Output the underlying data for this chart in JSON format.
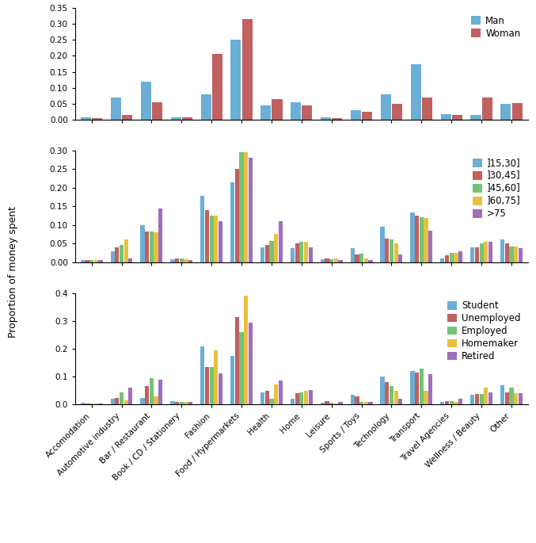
{
  "categories": [
    "Accomodation",
    "Automotive industry",
    "Bar / Restaurant",
    "Book / CD / Stationery",
    "Fashion",
    "Food / Hypermarkets",
    "Health",
    "Home",
    "Leisure",
    "Sports / Toys",
    "Technology",
    "Transport",
    "Travel Agencies",
    "Wellness / Beauty",
    "Other"
  ],
  "panel1": {
    "ylim": [
      0,
      0.35
    ],
    "yticks": [
      0.0,
      0.05,
      0.1,
      0.15,
      0.2,
      0.25,
      0.3,
      0.35
    ],
    "series": {
      "Man": [
        0.008,
        0.07,
        0.12,
        0.008,
        0.08,
        0.25,
        0.045,
        0.055,
        0.008,
        0.03,
        0.08,
        0.175,
        0.018,
        0.015,
        0.05
      ],
      "Woman": [
        0.004,
        0.015,
        0.055,
        0.008,
        0.205,
        0.315,
        0.065,
        0.045,
        0.004,
        0.025,
        0.05,
        0.068,
        0.015,
        0.068,
        0.052
      ]
    },
    "colors": {
      "Man": "#6baed6",
      "Woman": "#c06060"
    },
    "legend_labels": [
      "Man",
      "Woman"
    ]
  },
  "panel2": {
    "ylim": [
      0,
      0.3
    ],
    "yticks": [
      0.0,
      0.05,
      0.1,
      0.15,
      0.2,
      0.25,
      0.3
    ],
    "series": {
      "]15,30]": [
        0.005,
        0.028,
        0.1,
        0.008,
        0.178,
        0.215,
        0.04,
        0.038,
        0.008,
        0.038,
        0.095,
        0.133,
        0.01,
        0.04,
        0.062
      ],
      "]30,45]": [
        0.005,
        0.04,
        0.083,
        0.01,
        0.14,
        0.25,
        0.045,
        0.05,
        0.01,
        0.02,
        0.064,
        0.125,
        0.018,
        0.04,
        0.05
      ],
      "]45,60]": [
        0.005,
        0.046,
        0.082,
        0.01,
        0.125,
        0.295,
        0.057,
        0.055,
        0.008,
        0.022,
        0.06,
        0.12,
        0.025,
        0.05,
        0.042
      ],
      "]60,75]": [
        0.005,
        0.06,
        0.08,
        0.008,
        0.125,
        0.295,
        0.075,
        0.055,
        0.01,
        0.01,
        0.05,
        0.118,
        0.025,
        0.055,
        0.042
      ],
      ">75": [
        0.005,
        0.01,
        0.145,
        0.005,
        0.11,
        0.28,
        0.11,
        0.04,
        0.005,
        0.005,
        0.02,
        0.085,
        0.028,
        0.055,
        0.038
      ]
    },
    "colors": {
      "]15,30]": "#6baed6",
      "]30,45]": "#c06060",
      "]45,60]": "#74c476",
      "]60,75]": "#e8c040",
      ">75": "#9e6ebd"
    },
    "legend_labels": [
      "]15,30]",
      "]30,45]",
      "]45,60]",
      "]60,75]",
      ">75"
    ]
  },
  "panel3": {
    "ylim": [
      0,
      0.4
    ],
    "yticks": [
      0.0,
      0.1,
      0.2,
      0.3,
      0.4
    ],
    "series": {
      "Student": [
        0.007,
        0.02,
        0.025,
        0.012,
        0.21,
        0.175,
        0.045,
        0.02,
        0.008,
        0.035,
        0.1,
        0.12,
        0.01,
        0.035,
        0.07
      ],
      "Unemployed": [
        0.005,
        0.025,
        0.065,
        0.01,
        0.135,
        0.315,
        0.048,
        0.04,
        0.012,
        0.03,
        0.08,
        0.115,
        0.012,
        0.038,
        0.045
      ],
      "Employed": [
        0.005,
        0.045,
        0.095,
        0.01,
        0.135,
        0.26,
        0.02,
        0.045,
        0.008,
        0.01,
        0.065,
        0.13,
        0.012,
        0.038,
        0.06
      ],
      "Homemaker": [
        0.004,
        0.015,
        0.03,
        0.01,
        0.195,
        0.39,
        0.072,
        0.048,
        0.005,
        0.01,
        0.048,
        0.05,
        0.01,
        0.06,
        0.04
      ],
      "Retired": [
        0.005,
        0.06,
        0.09,
        0.01,
        0.112,
        0.295,
        0.085,
        0.052,
        0.01,
        0.01,
        0.022,
        0.11,
        0.02,
        0.045,
        0.04
      ]
    },
    "colors": {
      "Student": "#6baed6",
      "Unemployed": "#c06060",
      "Employed": "#74c476",
      "Homemaker": "#e8c040",
      "Retired": "#9e6ebd"
    },
    "legend_labels": [
      "Student",
      "Unemployed",
      "Employed",
      "Homemaker",
      "Retired"
    ]
  },
  "ylabel": "Proportion of money spent",
  "tick_label_fontsize": 7.5,
  "axis_label_fontsize": 9,
  "legend_fontsize": 8.5
}
